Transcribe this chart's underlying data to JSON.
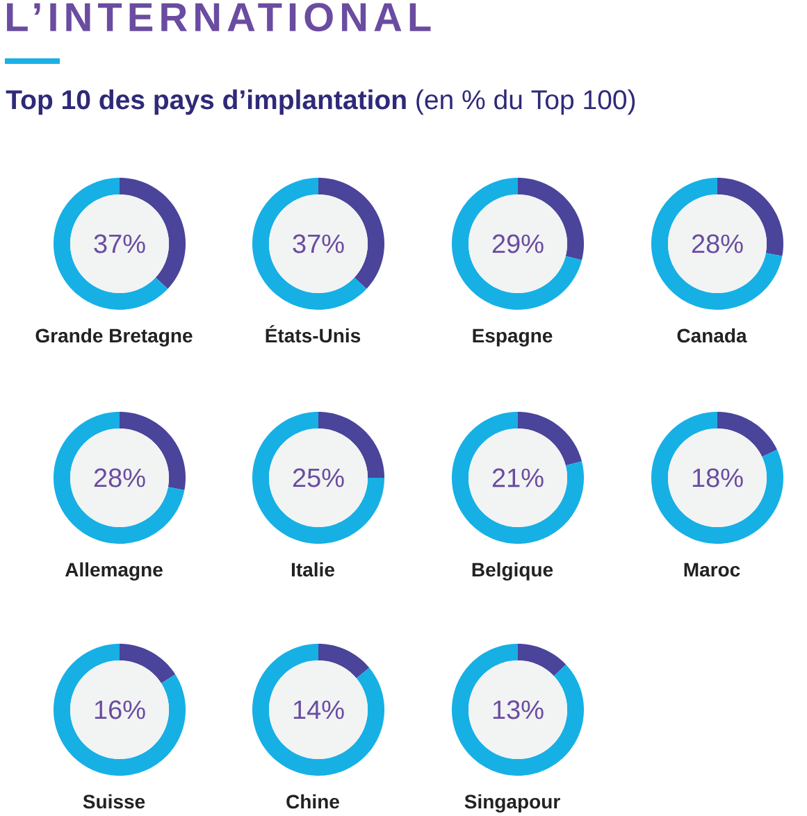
{
  "chart_data": [
    {
      "type": "other",
      "title": "L’INTERNATIONAL",
      "subtitle": "**Top 10 des pays d’implantation** (en % du Top 100)"
    },
    {
      "type": "donut",
      "title": "Grande Bretagne",
      "categories": [
        null,
        null
      ],
      "values": [
        37,
        63
      ],
      "colors": [
        "#4a449a",
        "#16b0e5"
      ],
      "annotations": [
        "37%"
      ]
    },
    {
      "type": "donut",
      "title": "États-Unis",
      "categories": [
        null,
        null
      ],
      "values": [
        37,
        63
      ],
      "colors": [
        "#4a449a",
        "#16b0e5"
      ],
      "annotations": [
        "37%"
      ]
    },
    {
      "type": "donut",
      "title": "Espagne",
      "categories": [
        null,
        null
      ],
      "values": [
        29,
        71
      ],
      "colors": [
        "#4a449a",
        "#16b0e5"
      ],
      "annotations": [
        "29%"
      ]
    },
    {
      "type": "donut",
      "title": "Canada",
      "categories": [
        null,
        null
      ],
      "values": [
        28,
        72
      ],
      "colors": [
        "#4a449a",
        "#16b0e5"
      ],
      "annotations": [
        "28%"
      ]
    },
    {
      "type": "donut",
      "title": "Allemagne",
      "categories": [
        null,
        null
      ],
      "values": [
        28,
        72
      ],
      "colors": [
        "#4a449a",
        "#16b0e5"
      ],
      "annotations": [
        "28%"
      ]
    },
    {
      "type": "donut",
      "title": "Italie",
      "categories": [
        null,
        null
      ],
      "values": [
        25,
        75
      ],
      "colors": [
        "#4a449a",
        "#16b0e5"
      ],
      "annotations": [
        "25%"
      ]
    },
    {
      "type": "donut",
      "title": "Belgique",
      "categories": [
        null,
        null
      ],
      "values": [
        21,
        79
      ],
      "colors": [
        "#4a449a",
        "#16b0e5"
      ],
      "annotations": [
        "21%"
      ]
    },
    {
      "type": "donut",
      "title": "Maroc",
      "categories": [
        null,
        null
      ],
      "values": [
        18,
        82
      ],
      "colors": [
        "#4a449a",
        "#16b0e5"
      ],
      "annotations": [
        "18%"
      ]
    },
    {
      "type": "donut",
      "title": "Suisse",
      "categories": [
        null,
        null
      ],
      "values": [
        16,
        84
      ],
      "colors": [
        "#4a449a",
        "#16b0e5"
      ],
      "annotations": [
        "16%"
      ]
    },
    {
      "type": "donut",
      "title": "Chine",
      "categories": [
        null,
        null
      ],
      "values": [
        14,
        86
      ],
      "colors": [
        "#4a449a",
        "#16b0e5"
      ],
      "annotations": [
        "14%"
      ]
    },
    {
      "type": "donut",
      "title": "Singapour",
      "categories": [
        null,
        null
      ],
      "values": [
        13,
        87
      ],
      "colors": [
        "#4a449a",
        "#16b0e5"
      ],
      "annotations": [
        "13%"
      ]
    }
  ]
}
